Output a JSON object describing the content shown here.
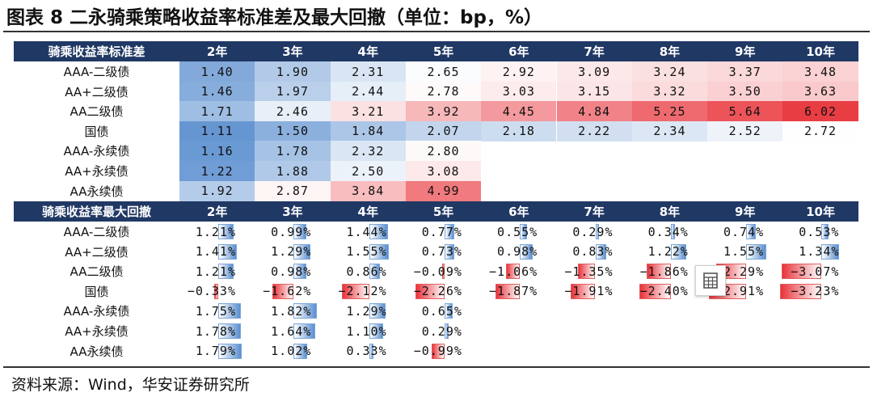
{
  "title": "图表 8 二永骑乘策略收益率标准差及最大回撤（单位：bp，%）",
  "source": "资料来源：Wind，华安证券研究所",
  "table1": {
    "header_label": "骑乘收益率标准差",
    "columns": [
      "2年",
      "3年",
      "4年",
      "5年",
      "6年",
      "7年",
      "8年",
      "9年",
      "10年"
    ],
    "rows": [
      {
        "label": "AAA-二级债",
        "values": [
          "1.40",
          "1.90",
          "2.31",
          "2.65",
          "2.92",
          "3.09",
          "3.24",
          "3.37",
          "3.48"
        ]
      },
      {
        "label": "AA+二级债",
        "values": [
          "1.46",
          "1.97",
          "2.44",
          "2.78",
          "3.03",
          "3.15",
          "3.32",
          "3.50",
          "3.63"
        ]
      },
      {
        "label": "AA二级债",
        "values": [
          "1.71",
          "2.46",
          "3.21",
          "3.92",
          "4.45",
          "4.84",
          "5.25",
          "5.64",
          "6.02"
        ]
      },
      {
        "label": "国债",
        "values": [
          "1.11",
          "1.50",
          "1.84",
          "2.07",
          "2.18",
          "2.22",
          "2.34",
          "2.52",
          "2.72"
        ]
      },
      {
        "label": "AAA-永续债",
        "values": [
          "1.16",
          "1.78",
          "2.32",
          "2.80",
          "",
          "",
          "",
          "",
          ""
        ]
      },
      {
        "label": "AA+永续债",
        "values": [
          "1.22",
          "1.88",
          "2.50",
          "3.08",
          "",
          "",
          "",
          "",
          ""
        ]
      },
      {
        "label": "AA永续债",
        "values": [
          "1.92",
          "2.87",
          "3.84",
          "4.99",
          "",
          "",
          "",
          "",
          ""
        ]
      }
    ]
  },
  "table2": {
    "header_label": "骑乘收益率最大回撤",
    "columns": [
      "2年",
      "3年",
      "4年",
      "5年",
      "6年",
      "7年",
      "8年",
      "9年",
      "10年"
    ],
    "rows": [
      {
        "label": "AAA-二级债",
        "values": [
          "1.21%",
          "0.99%",
          "1.44%",
          "0.77%",
          "0.55%",
          "0.29%",
          "0.34%",
          "0.74%",
          "0.53%"
        ]
      },
      {
        "label": "AA+二级债",
        "values": [
          "1.41%",
          "1.29%",
          "1.55%",
          "0.73%",
          "0.98%",
          "0.83%",
          "1.22%",
          "1.55%",
          "1.34%"
        ]
      },
      {
        "label": "AA二级债",
        "values": [
          "1.21%",
          "0.98%",
          "0.86%",
          "-0.09%",
          "-1.06%",
          "-1.35%",
          "-1.86%",
          "-2.29%",
          "-3.07%"
        ]
      },
      {
        "label": "国债",
        "values": [
          "-0.33%",
          "-1.62%",
          "-2.12%",
          "-2.26%",
          "-1.87%",
          "-1.91%",
          "-2.40%",
          "-2.91%",
          "-3.23%"
        ]
      },
      {
        "label": "AAA-永续债",
        "values": [
          "1.75%",
          "1.82%",
          "1.29%",
          "0.65%",
          "",
          "",
          "",
          "",
          ""
        ]
      },
      {
        "label": "AA+永续债",
        "values": [
          "1.78%",
          "1.64%",
          "1.10%",
          "0.29%",
          "",
          "",
          "",
          "",
          ""
        ]
      },
      {
        "label": "AA永续债",
        "values": [
          "1.79%",
          "1.02%",
          "0.33%",
          "-0.99%",
          "",
          "",
          "",
          "",
          ""
        ]
      }
    ]
  },
  "colors": {
    "header_bg": "#203864",
    "scale_low": "#5b8fcf",
    "scale_mid": "#ffffff",
    "scale_high": "#e8333a"
  },
  "icons": {
    "floating_button": "table-grid-icon"
  }
}
